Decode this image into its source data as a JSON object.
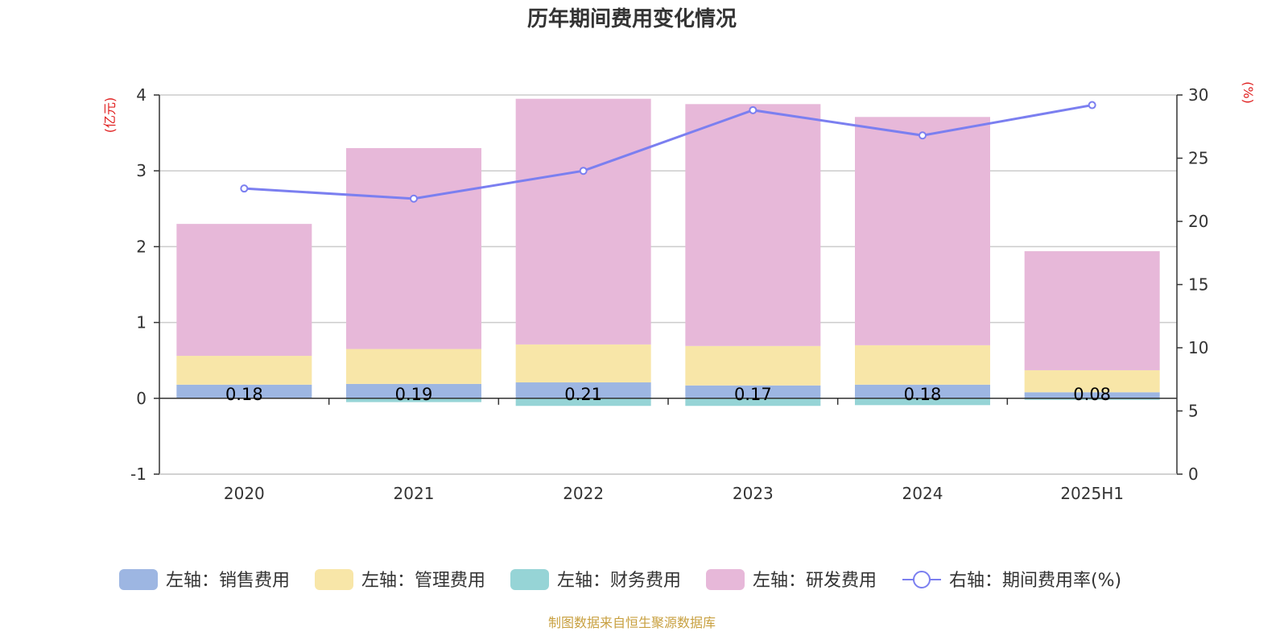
{
  "chart_data": {
    "type": "bar",
    "title": "历年期间费用变化情况",
    "categories": [
      "2020",
      "2021",
      "2022",
      "2023",
      "2024",
      "2025H1"
    ],
    "stacked": true,
    "left_axis": {
      "unit": "(亿元)",
      "ticks": [
        "-1",
        "0",
        "1",
        "2",
        "3",
        "4"
      ],
      "ylim": [
        -1,
        4
      ]
    },
    "right_axis": {
      "unit": "(%)",
      "ticks": [
        "0",
        "5",
        "10",
        "15",
        "20",
        "25",
        "30"
      ],
      "ylim": [
        0,
        30
      ]
    },
    "series": [
      {
        "name": "左轴：销售费用",
        "type": "bar",
        "axis": "left",
        "color": "#9db6e2",
        "values": [
          0.18,
          0.19,
          0.21,
          0.17,
          0.18,
          0.08
        ],
        "labels": [
          "0.18",
          "0.19",
          "0.21",
          "0.17",
          "0.18",
          "0.08"
        ]
      },
      {
        "name": "左轴：管理费用",
        "type": "bar",
        "axis": "left",
        "color": "#f8e6a8",
        "values": [
          0.38,
          0.46,
          0.5,
          0.52,
          0.52,
          0.29
        ]
      },
      {
        "name": "左轴：财务费用",
        "type": "bar",
        "axis": "left",
        "color": "#96d4d6",
        "values": [
          0.0,
          -0.05,
          -0.1,
          -0.1,
          -0.09,
          -0.02
        ]
      },
      {
        "name": "左轴：研发费用",
        "type": "bar",
        "axis": "left",
        "color": "#e7b8d9",
        "values": [
          1.74,
          2.65,
          3.24,
          3.19,
          3.01,
          1.57
        ]
      },
      {
        "name": "右轴：期间费用率(%)",
        "type": "line",
        "axis": "right",
        "color": "#7b7ff0",
        "values": [
          22.6,
          21.8,
          24.0,
          28.8,
          26.8,
          29.2
        ]
      }
    ],
    "grid": true,
    "legend_position": "bottom"
  },
  "footer": {
    "source": "制图数据来自恒生聚源数据库",
    "source_color": "#c8a040"
  },
  "colors": {
    "axis_unit": "#e02020",
    "grid": "#cccccc",
    "axis": "#333333"
  }
}
